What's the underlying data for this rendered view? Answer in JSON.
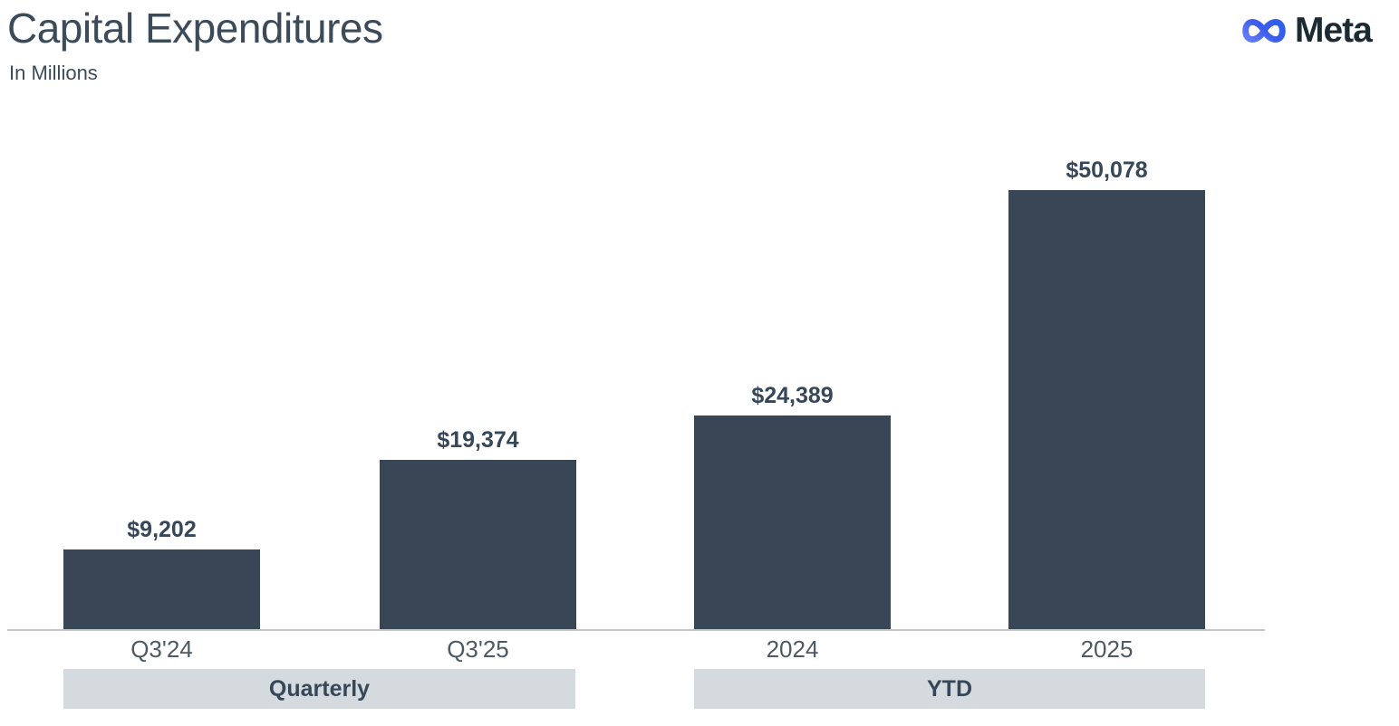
{
  "header": {
    "title": "Capital Expenditures",
    "subtitle": "In Millions",
    "brand": "Meta"
  },
  "colors": {
    "bar": "#384655",
    "band_bg": "#d5dade",
    "baseline": "#c4c6c9",
    "title_text": "#3c4b5a",
    "value_text": "#36475a",
    "category_text": "#4d5965",
    "brand_text": "#1c2b33",
    "logo_gradient_start": "#627af5",
    "logo_gradient_end": "#2e5fea"
  },
  "chart_data": {
    "type": "bar",
    "title": "Capital Expenditures",
    "subtitle": "In Millions",
    "xlabel": "",
    "ylabel": "",
    "ylim": [
      0,
      50078
    ],
    "grid": false,
    "legend": false,
    "categories": [
      "Q3'24",
      "Q3'25",
      "2024",
      "2025"
    ],
    "values": [
      9202,
      19374,
      24389,
      50078
    ],
    "bars": [
      {
        "category": "Q3'24",
        "value": 9202,
        "display": "$9,202",
        "group": "Quarterly"
      },
      {
        "category": "Q3'25",
        "value": 19374,
        "display": "$19,374",
        "group": "Quarterly"
      },
      {
        "category": "2024",
        "value": 24389,
        "display": "$24,389",
        "group": "YTD"
      },
      {
        "category": "2025",
        "value": 50078,
        "display": "$50,078",
        "group": "YTD"
      }
    ],
    "groups": [
      {
        "label": "Quarterly"
      },
      {
        "label": "YTD"
      }
    ]
  }
}
